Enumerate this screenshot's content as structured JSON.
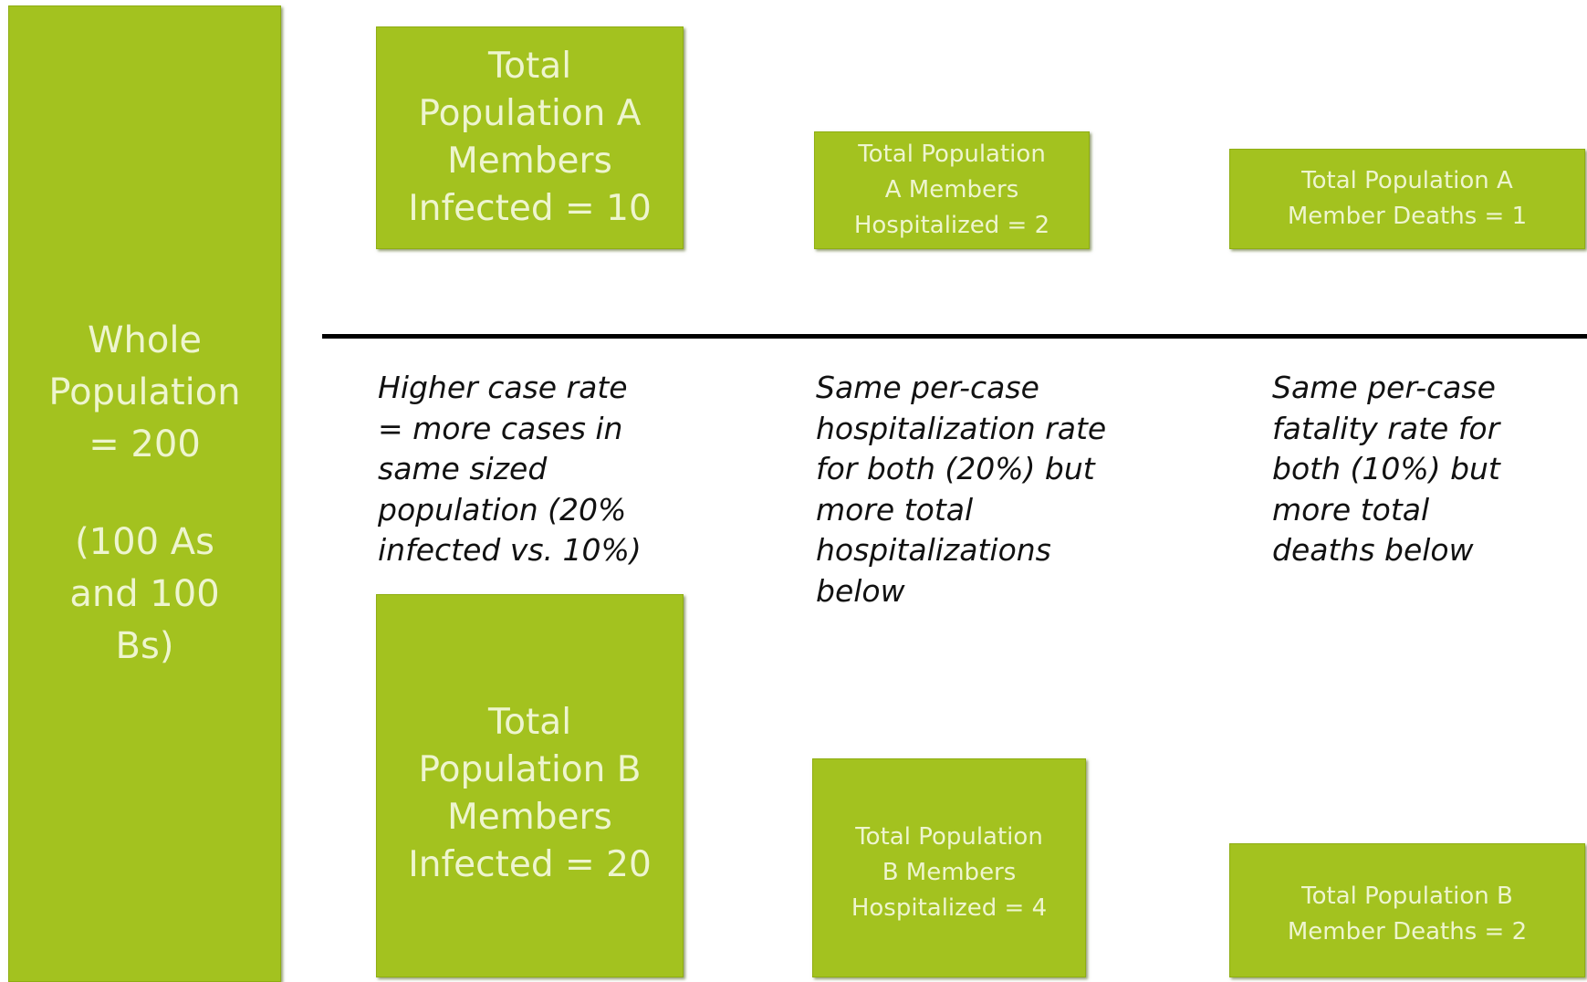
{
  "whole": {
    "lines": [
      "Whole",
      "Population",
      "= 200"
    ],
    "note_lines": [
      "(100 As",
      "and 100",
      "Bs)"
    ]
  },
  "nodes": [
    {
      "lines": [
        "Total",
        "Population A",
        "Members",
        "Infected = 10"
      ]
    },
    {
      "lines": [
        "Total Population",
        "A Members",
        "Hospitalized = 2"
      ]
    },
    {
      "lines": [
        "Total Population A",
        "Member Deaths = 1"
      ]
    },
    {
      "lines": [
        "Total",
        "Population B",
        "Members",
        "Infected = 20"
      ]
    },
    {
      "lines": [
        "Total Population",
        "B Members",
        "Hospitalized = 4"
      ]
    },
    {
      "lines": [
        "Total Population B",
        "Member Deaths = 2"
      ]
    }
  ],
  "notes": [
    {
      "lines": [
        "Higher case rate",
        "= more cases in",
        "same sized",
        "population (20%",
        "infected vs. 10%)"
      ]
    },
    {
      "lines": [
        "Same per-case",
        "hospitalization rate",
        "for both (20%) but",
        "more total",
        "hospitalizations",
        "below"
      ]
    },
    {
      "lines": [
        "Same per-case",
        "fatality rate for",
        "both (10%) but",
        "more total",
        "deaths below"
      ]
    }
  ]
}
